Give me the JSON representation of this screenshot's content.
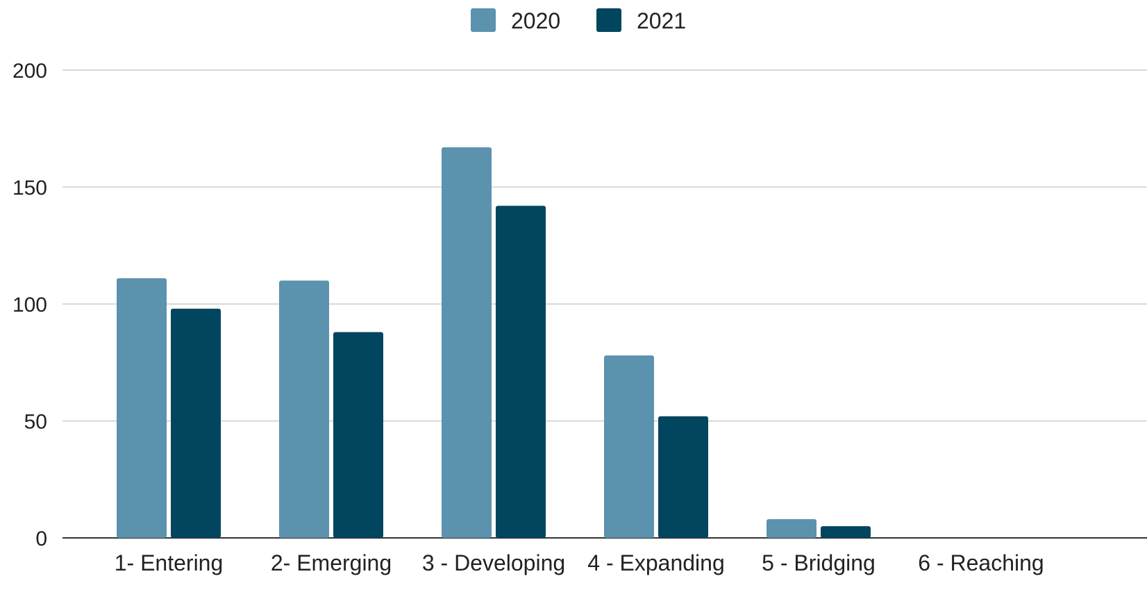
{
  "chart_data": {
    "type": "bar",
    "categories": [
      "1- Entering",
      "2- Emerging",
      "3 - Developing",
      "4 - Expanding",
      "5 - Bridging",
      "6 - Reaching"
    ],
    "series": [
      {
        "name": "2020",
        "values": [
          111,
          110,
          167,
          78,
          8,
          0
        ]
      },
      {
        "name": "2021",
        "values": [
          98,
          88,
          142,
          52,
          5,
          0
        ]
      }
    ],
    "y_ticks": [
      "0",
      "50",
      "100",
      "150",
      "200"
    ],
    "ylim": [
      0,
      200
    ],
    "grid": true,
    "legend_position": "top-center",
    "colors": {
      "2020": "#5b92ae",
      "2021": "#02455e",
      "grid": "#cccccc",
      "axis": "#333333"
    }
  }
}
